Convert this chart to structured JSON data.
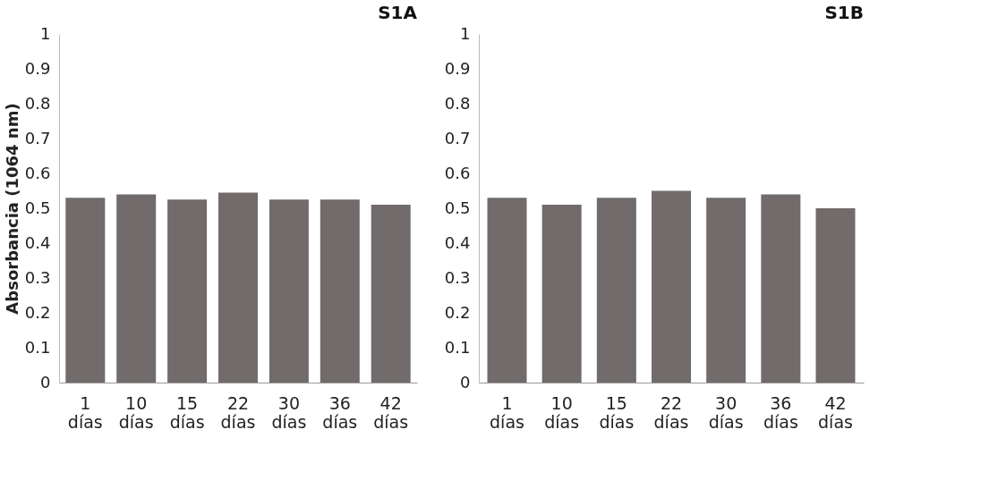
{
  "chart_data": [
    {
      "type": "bar",
      "title": "S1A",
      "ylabel": "Absorbancia (1064 nm)",
      "categories": [
        "1 días",
        "10 días",
        "15 días",
        "22 días",
        "30 días",
        "36 días",
        "42 días"
      ],
      "values": [
        0.53,
        0.54,
        0.525,
        0.545,
        0.525,
        0.525,
        0.51
      ],
      "color": "#716b6b",
      "ylim": [
        0,
        1
      ],
      "yticks": [
        0,
        0.1,
        0.2,
        0.3,
        0.4,
        0.5,
        0.6,
        0.7,
        0.8,
        0.9,
        1
      ],
      "grid": false
    },
    {
      "type": "bar",
      "title": "S1B",
      "categories": [
        "1 días",
        "10 días",
        "15 días",
        "22 días",
        "30 días",
        "36 días",
        "42 días"
      ],
      "values": [
        0.53,
        0.51,
        0.53,
        0.55,
        0.53,
        0.54,
        0.5
      ],
      "color": "#716b6b",
      "ylim": [
        0,
        1
      ],
      "yticks": [
        0,
        0.1,
        0.2,
        0.3,
        0.4,
        0.5,
        0.6,
        0.7,
        0.8,
        0.9,
        1
      ],
      "grid": false
    }
  ]
}
